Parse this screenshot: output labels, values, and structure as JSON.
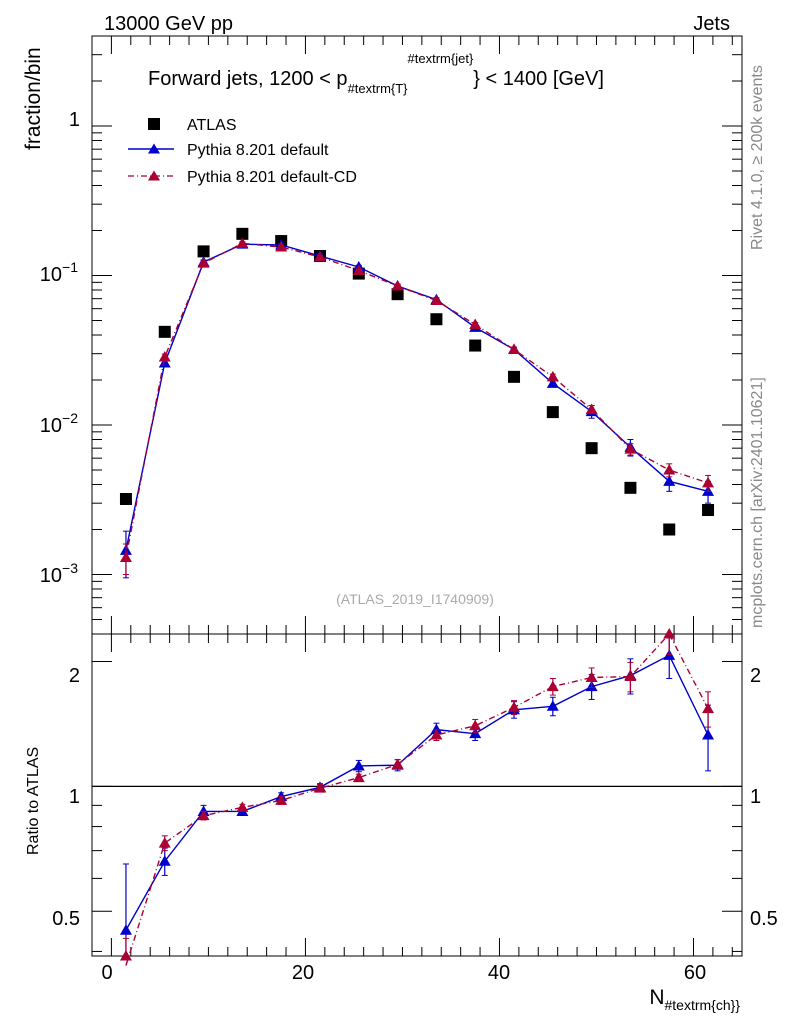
{
  "header": {
    "energy_label": "13000 GeV pp",
    "category_label": "Jets"
  },
  "side_text": {
    "rivet": "Rivet 4.1.0, ≥ 200k events",
    "mcplots": "mcplots.cern.ch [arXiv:2401.10621]"
  },
  "chart_data": [
    {
      "type": "scatter",
      "panel": "main",
      "title_main": "Forward jets, 1200 < p",
      "title_sub": "#textrm{T}",
      "title_sup": "#textrm{jet}",
      "title_end": "} < 1400 [GeV]",
      "ylabel": "fraction/bin",
      "yscale": "log",
      "ylim": [
        0.0004,
        4
      ],
      "xlim": [
        -2,
        65
      ],
      "ytick_labels": {
        "m3": "10",
        "m3e": "−3",
        "m2": "10",
        "m2e": "−2",
        "m1": "10",
        "m1e": "−1",
        "one": "1"
      },
      "watermark": "(ATLAS_2019_I1740909)",
      "legend_position": "top-left",
      "x": [
        1.5,
        5.5,
        9.5,
        13.5,
        17.5,
        21.5,
        25.5,
        29.5,
        33.5,
        37.5,
        41.5,
        45.5,
        49.5,
        53.5,
        57.5,
        61.5
      ],
      "series": [
        {
          "name": "ATLAS",
          "color": "#000000",
          "style": "square",
          "values": [
            0.0032,
            0.042,
            0.145,
            0.19,
            0.17,
            0.135,
            0.103,
            0.075,
            0.051,
            0.034,
            0.021,
            0.0122,
            0.007,
            0.0038,
            0.002,
            0.0027
          ]
        },
        {
          "name": "Pythia 8.201 default",
          "color": "#0000cc",
          "style": "line-triangle",
          "values": [
            0.00145,
            0.026,
            0.123,
            0.162,
            0.16,
            0.135,
            0.114,
            0.085,
            0.069,
            0.045,
            0.032,
            0.019,
            0.0123,
            0.0071,
            0.0042,
            0.0036
          ],
          "errors": [
            0.0005,
            0.0012,
            0.004,
            0.004,
            0.004,
            0.003,
            0.003,
            0.0025,
            0.002,
            0.0015,
            0.0012,
            0.0009,
            0.0012,
            0.0009,
            0.0006,
            0.0006
          ]
        },
        {
          "name": "Pythia 8.201 default-CD",
          "color": "#aa0033",
          "style": "dashdot-triangle",
          "values": [
            0.0013,
            0.0285,
            0.121,
            0.164,
            0.155,
            0.133,
            0.108,
            0.085,
            0.068,
            0.047,
            0.032,
            0.021,
            0.0127,
            0.0069,
            0.005,
            0.0041
          ],
          "errors": [
            0.0003,
            0.0013,
            0.004,
            0.004,
            0.004,
            0.003,
            0.003,
            0.0025,
            0.002,
            0.0015,
            0.0012,
            0.0009,
            0.0008,
            0.0006,
            0.0005,
            0.0005
          ]
        }
      ]
    },
    {
      "type": "line",
      "panel": "ratio",
      "ylabel": "Ratio to ATLAS",
      "xlabel_main": "N",
      "xlabel_sub": "#textrm{ch}}",
      "ylim": [
        0.39,
        2.33
      ],
      "xlim": [
        -2,
        65
      ],
      "reference": 1,
      "xticks": [
        "0",
        "20",
        "40",
        "60"
      ],
      "yticks": [
        "0.5",
        "1",
        "2"
      ],
      "x": [
        1.5,
        5.5,
        9.5,
        13.5,
        17.5,
        21.5,
        25.5,
        29.5,
        33.5,
        37.5,
        41.5,
        45.5,
        49.5,
        53.5,
        57.5,
        61.5
      ],
      "series": [
        {
          "name": "Pythia 8.201 default",
          "color": "#0000cc",
          "values": [
            0.45,
            0.66,
            0.87,
            0.87,
            0.945,
            0.995,
            1.12,
            1.125,
            1.37,
            1.34,
            1.53,
            1.56,
            1.74,
            1.85,
            2.07,
            1.33
          ],
          "errors": [
            0.2,
            0.05,
            0.03,
            0.015,
            0.02,
            0.02,
            0.035,
            0.035,
            0.05,
            0.05,
            0.07,
            0.08,
            0.12,
            0.18,
            0.25,
            0.24
          ]
        },
        {
          "name": "Pythia 8.201 default-CD",
          "color": "#aa0033",
          "values": [
            0.37,
            0.73,
            0.85,
            0.89,
            0.925,
            0.99,
            1.05,
            1.13,
            1.33,
            1.4,
            1.55,
            1.74,
            1.83,
            1.84,
            2.33,
            1.54
          ],
          "errors": [
            0.06,
            0.03,
            0.02,
            0.015,
            0.02,
            0.02,
            0.02,
            0.03,
            0.04,
            0.05,
            0.06,
            0.08,
            0.1,
            0.15,
            0.25,
            0.15
          ]
        }
      ]
    }
  ]
}
